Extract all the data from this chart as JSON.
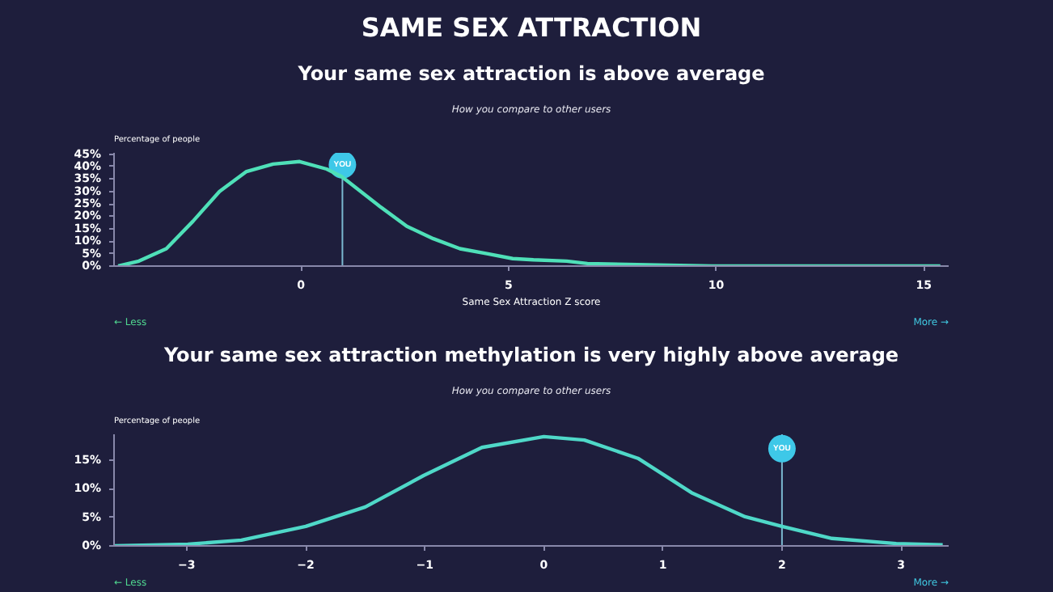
{
  "chart_data": [
    {
      "type": "line",
      "title": "Your same sex attraction is above average",
      "subtitle": "How you compare to other users",
      "xlabel": "Same Sex Attraction Z score",
      "ylabel": "Percentage of people",
      "annotations": [
        "SAME SEX ATTRACTION",
        "← Less",
        "More →",
        {
          "text": "YOU",
          "x": 1,
          "y": 40.7
        }
      ],
      "series": [
        {
          "color": "#4fe0b8",
          "x": [
            -4.4,
            -3.9,
            -3.24,
            -2.6,
            -1.96,
            -1.31,
            -0.67,
            -0.03,
            0.62,
            0.98,
            1.9,
            2.55,
            3.19,
            3.83,
            4.48,
            5.1,
            5.6,
            6.4,
            6.9,
            9.9,
            15.4
          ],
          "values": [
            0,
            2,
            7,
            18,
            30,
            38,
            41,
            42,
            39,
            36,
            24,
            16,
            11,
            7,
            5,
            3,
            2.5,
            2,
            1,
            0,
            0
          ]
        }
      ],
      "xlim": [
        -4.5,
        15.6
      ],
      "ylim": [
        0,
        45.5
      ],
      "xticks": [
        0,
        5,
        10,
        15
      ],
      "yticks": [
        {
          "value": 0,
          "label": "0%"
        },
        {
          "value": 5,
          "label": "5%"
        },
        {
          "value": 10,
          "label": "10%"
        },
        {
          "value": 15,
          "label": "15%"
        },
        {
          "value": 20,
          "label": "20%"
        },
        {
          "value": 25,
          "label": "25%"
        },
        {
          "value": 30,
          "label": "30%"
        },
        {
          "value": 35,
          "label": "35%"
        },
        {
          "value": 40,
          "label": "40%"
        },
        {
          "value": 45,
          "label": "45%"
        }
      ],
      "ref_lines": [
        {
          "axis": "x",
          "value": 1,
          "color": "#7ab8d0"
        }
      ],
      "grid": false,
      "marker": "none",
      "line_style": "solid"
    },
    {
      "type": "line",
      "title": "Your same sex attraction methylation is very highly above average",
      "subtitle": "How you compare to other users",
      "ylabel": "Percentage of people",
      "annotations": [
        "← Less",
        "More →",
        {
          "text": "YOU",
          "x": 2,
          "y": 17
        }
      ],
      "series": [
        {
          "color": "#4fd8c8",
          "x": [
            -3.61,
            -2.99,
            -2.54,
            -2,
            -1.5,
            -1.01,
            -0.52,
            0,
            0.34,
            0.79,
            1.24,
            1.69,
            2,
            2.42,
            2.96,
            3.35
          ],
          "values": [
            0,
            0.3,
            1,
            3.4,
            6.8,
            12.3,
            17.2,
            19.1,
            18.5,
            15.3,
            9.3,
            5.1,
            3.4,
            1.3,
            0.4,
            0.2
          ]
        }
      ],
      "xlim": [
        -3.61,
        3.4
      ],
      "ylim": [
        0,
        19.5
      ],
      "xticks": [
        -3,
        -2,
        -1,
        0,
        1,
        2,
        3
      ],
      "yticks": [
        {
          "value": 0,
          "label": "0%"
        },
        {
          "value": 5,
          "label": "5%"
        },
        {
          "value": 10,
          "label": "10%"
        },
        {
          "value": 15,
          "label": "15%"
        }
      ],
      "ref_lines": [
        {
          "axis": "x",
          "value": 2,
          "color": "#7ab8d0"
        }
      ],
      "grid": false,
      "marker": "none",
      "line_style": "solid"
    }
  ]
}
